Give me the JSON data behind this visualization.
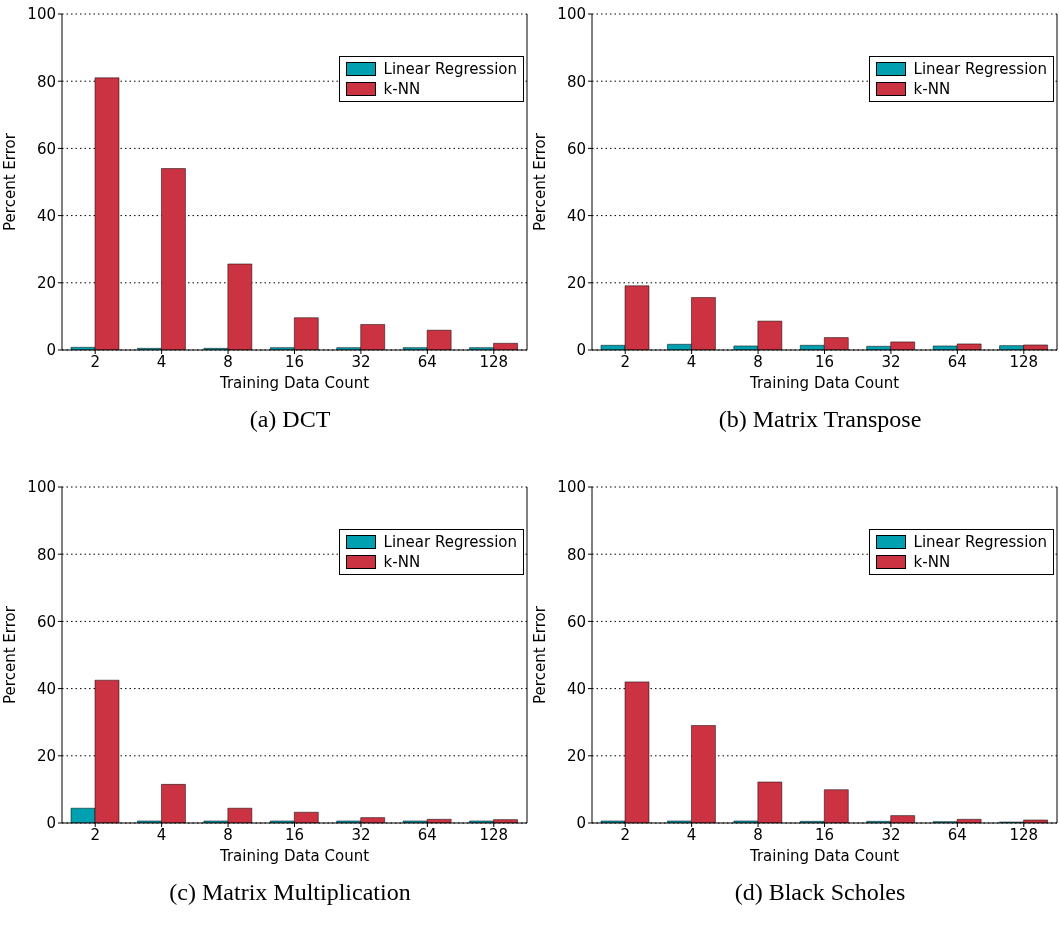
{
  "chart_data": [
    {
      "type": "bar",
      "title": "(a) DCT",
      "xlabel": "Training Data Count",
      "ylabel": "Percent Error",
      "categories": [
        "2",
        "4",
        "8",
        "16",
        "32",
        "64",
        "128"
      ],
      "series": [
        {
          "name": "Linear Regression",
          "color": "#00a0b0",
          "values": [
            0.8,
            0.5,
            0.5,
            0.7,
            0.7,
            0.7,
            0.7
          ]
        },
        {
          "name": "k-NN",
          "color": "#cc3342",
          "values": [
            81,
            54,
            25.6,
            9.6,
            7.6,
            5.9,
            2.0
          ]
        }
      ],
      "ylim": [
        0,
        100
      ],
      "yticks": [
        0,
        20,
        40,
        60,
        80,
        100
      ],
      "grid": "y",
      "legend": "top right"
    },
    {
      "type": "bar",
      "title": "(b) Matrix Transpose",
      "xlabel": "Training Data Count",
      "ylabel": "Percent Error",
      "categories": [
        "2",
        "4",
        "8",
        "16",
        "32",
        "64",
        "128"
      ],
      "series": [
        {
          "name": "Linear Regression",
          "color": "#00a0b0",
          "values": [
            1.4,
            1.7,
            1.2,
            1.4,
            1.1,
            1.2,
            1.3
          ]
        },
        {
          "name": "k-NN",
          "color": "#cc3342",
          "values": [
            19.1,
            15.6,
            8.6,
            3.7,
            2.4,
            1.8,
            1.5
          ]
        }
      ],
      "ylim": [
        0,
        100
      ],
      "yticks": [
        0,
        20,
        40,
        60,
        80,
        100
      ],
      "grid": "y",
      "legend": "top right"
    },
    {
      "type": "bar",
      "title": "(c) Matrix Multiplication",
      "xlabel": "Training Data Count",
      "ylabel": "Percent Error",
      "categories": [
        "2",
        "4",
        "8",
        "16",
        "32",
        "64",
        "128"
      ],
      "series": [
        {
          "name": "Linear Regression",
          "color": "#00a0b0",
          "values": [
            4.4,
            0.6,
            0.6,
            0.6,
            0.6,
            0.6,
            0.6
          ]
        },
        {
          "name": "k-NN",
          "color": "#cc3342",
          "values": [
            42.5,
            11.5,
            4.4,
            3.2,
            1.6,
            1.1,
            1.0
          ]
        }
      ],
      "ylim": [
        0,
        100
      ],
      "yticks": [
        0,
        20,
        40,
        60,
        80,
        100
      ],
      "grid": "y",
      "legend": "top right"
    },
    {
      "type": "bar",
      "title": "(d) Black Scholes",
      "xlabel": "Training Data Count",
      "ylabel": "Percent Error",
      "categories": [
        "2",
        "4",
        "8",
        "16",
        "32",
        "64",
        "128"
      ],
      "series": [
        {
          "name": "Linear Regression",
          "color": "#00a0b0",
          "values": [
            0.6,
            0.6,
            0.6,
            0.5,
            0.5,
            0.4,
            0.3
          ]
        },
        {
          "name": "k-NN",
          "color": "#cc3342",
          "values": [
            42,
            29,
            12.2,
            9.9,
            2.2,
            1.1,
            0.9
          ]
        }
      ],
      "ylim": [
        0,
        100
      ],
      "yticks": [
        0,
        20,
        40,
        60,
        80,
        100
      ],
      "grid": "y",
      "legend": "top right"
    }
  ]
}
